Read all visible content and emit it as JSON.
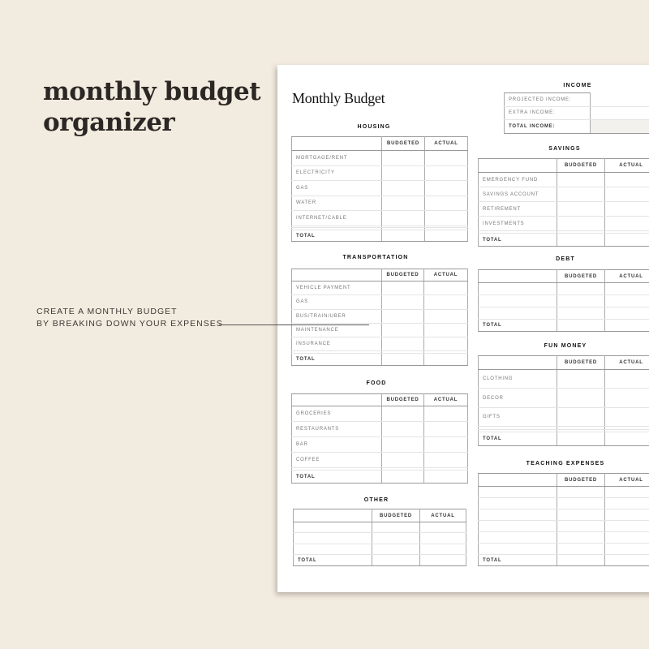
{
  "headline": {
    "line1": "monthly budget",
    "line2": "organizer"
  },
  "caption": {
    "line1": "CREATE A MONTHLY BUDGET",
    "line2": "BY BREAKING DOWN YOUR EXPENSES"
  },
  "document": {
    "title": "Monthly Budget",
    "column_headers": {
      "budgeted": "BUDGETED",
      "actual": "ACTUAL"
    },
    "total_label": "TOTAL",
    "income": {
      "title": "INCOME",
      "rows": [
        "PROJECTED INCOME:",
        "EXTRA INCOME:"
      ],
      "total": "TOTAL INCOME:"
    },
    "sections": [
      {
        "id": "housing",
        "title": "HOUSING",
        "rows": [
          "MORTGAGE/RENT",
          "ELECTRICITY",
          "GAS",
          "WATER",
          "INTERNET/CABLE",
          "",
          ""
        ]
      },
      {
        "id": "savings",
        "title": "SAVINGS",
        "rows": [
          "EMERGENCY FUND",
          "SAVINGS ACCOUNT",
          "RETIREMENT",
          "INVESTMENTS",
          ""
        ]
      },
      {
        "id": "transportation",
        "title": "TRANSPORTATION",
        "rows": [
          "VEHICLE PAYMENT",
          "GAS",
          "BUS/TRAIN/UBER",
          "MAINTENANCE",
          "INSURANCE",
          ""
        ]
      },
      {
        "id": "debt",
        "title": "DEBT",
        "rows": [
          "",
          "",
          ""
        ]
      },
      {
        "id": "fun-money",
        "title": "FUN MONEY",
        "rows": [
          "CLOTHING",
          "DECOR",
          "GIFTS",
          "",
          ""
        ]
      },
      {
        "id": "food",
        "title": "FOOD",
        "rows": [
          "GROCERIES",
          "RESTAURANTS",
          "BAR",
          "COFFEE",
          ""
        ]
      },
      {
        "id": "teaching-expenses",
        "title": "TEACHING EXPENSES",
        "rows": [
          "",
          "",
          "",
          "",
          "",
          ""
        ]
      },
      {
        "id": "other",
        "title": "OTHER",
        "rows": [
          "",
          "",
          ""
        ]
      }
    ]
  }
}
